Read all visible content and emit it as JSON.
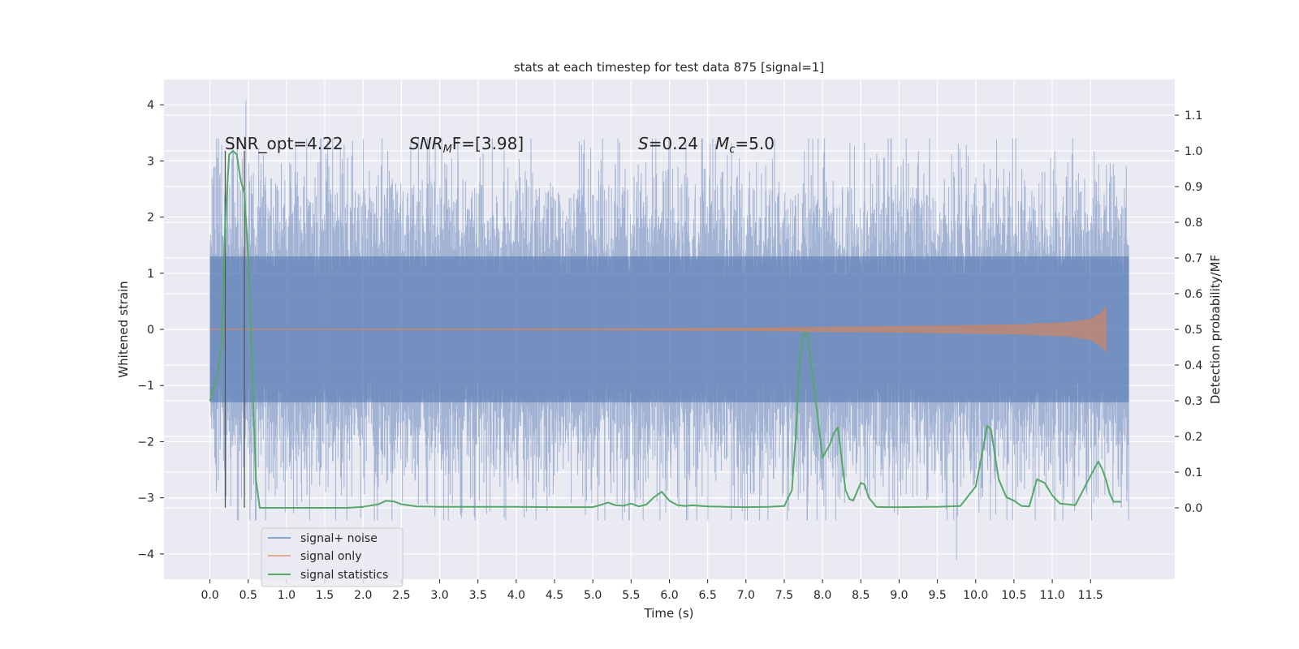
{
  "chart_data": {
    "type": "line",
    "title": "stats at each timestep for test data 875 [signal=1]",
    "xlabel": "Time (s)",
    "ylabel": "Whitened strain",
    "ylabel_right": "Detection probability/MF",
    "xlim": [
      -0.6,
      12.6
    ],
    "ylim": [
      -4.45,
      4.45
    ],
    "ylim_right": [
      -0.2,
      1.2
    ],
    "x_ticks": [
      0.0,
      0.5,
      1.0,
      1.5,
      2.0,
      2.5,
      3.0,
      3.5,
      4.0,
      4.5,
      5.0,
      5.5,
      6.0,
      6.5,
      7.0,
      7.5,
      8.0,
      8.5,
      9.0,
      9.5,
      10.0,
      10.5,
      11.0,
      11.5
    ],
    "x_tick_labels": [
      "0.0",
      "0.5",
      "1.0",
      "1.5",
      "2.0",
      "2.5",
      "3.0",
      "3.5",
      "4.0",
      "4.5",
      "5.0",
      "5.5",
      "6.0",
      "6.5",
      "7.0",
      "7.5",
      "8.0",
      "8.5",
      "9.0",
      "9.5",
      "10.0",
      "10.5",
      "11.0",
      "11.5"
    ],
    "y_ticks": [
      -4,
      -3,
      -2,
      -1,
      0,
      1,
      2,
      3,
      4
    ],
    "y_tick_labels": [
      "−4",
      "−3",
      "−2",
      "−1",
      "0",
      "1",
      "2",
      "3",
      "4"
    ],
    "y_right_ticks": [
      0.0,
      0.1,
      0.2,
      0.3,
      0.4,
      0.5,
      0.6,
      0.7,
      0.8,
      0.9,
      1.0,
      1.1
    ],
    "y_right_tick_labels": [
      "0.0",
      "0.1",
      "0.2",
      "0.3",
      "0.4",
      "0.5",
      "0.6",
      "0.7",
      "0.8",
      "0.9",
      "1.0",
      "1.1"
    ],
    "grid": true,
    "legend_position": "lower-left",
    "annotations": {
      "snr_opt": "SNR_opt=4.22",
      "snr_mf_main": "SNR",
      "snr_mf_sub": "M",
      "snr_mf_rest": "F=[3.98]",
      "s_main": "S",
      "s_rest": "=0.24",
      "mc_main": "M",
      "mc_sub": "c",
      "mc_rest": "=5.0"
    },
    "markers": {
      "x": [
        0.2,
        0.45
      ],
      "y_right_top": 1.0,
      "y_right_bottom": 0.0
    },
    "series": [
      {
        "name": "signal+ noise",
        "color": "#4c72b0",
        "envelope_approx": {
          "x": [
            0.0,
            12.0
          ],
          "dense_band": [
            -1.3,
            1.3
          ],
          "max_peak": 4.08,
          "min_peak": -4.1,
          "max_peak_x": 0.47,
          "min_peak_x": 9.75
        }
      },
      {
        "name": "signal only",
        "color": "#dd8452",
        "envelope_approx": {
          "x": [
            0.0,
            5.0,
            7.0,
            9.0,
            10.5,
            11.2,
            11.5,
            11.65,
            11.7
          ],
          "amplitude": [
            0.003,
            0.008,
            0.02,
            0.05,
            0.08,
            0.12,
            0.18,
            0.3,
            0.4
          ]
        }
      },
      {
        "name": "signal statistics",
        "color": "#55a868",
        "axis": "right",
        "x": [
          0.0,
          0.1,
          0.15,
          0.2,
          0.25,
          0.3,
          0.35,
          0.4,
          0.45,
          0.5,
          0.55,
          0.6,
          0.65,
          0.7,
          1.0,
          1.5,
          1.8,
          2.0,
          2.2,
          2.3,
          2.4,
          2.5,
          2.7,
          3.0,
          3.5,
          4.0,
          4.5,
          5.0,
          5.1,
          5.2,
          5.3,
          5.4,
          5.5,
          5.6,
          5.7,
          5.8,
          5.9,
          6.0,
          6.1,
          6.2,
          6.3,
          6.5,
          6.7,
          7.0,
          7.3,
          7.5,
          7.6,
          7.65,
          7.7,
          7.75,
          7.8,
          7.9,
          8.0,
          8.05,
          8.1,
          8.15,
          8.2,
          8.3,
          8.35,
          8.4,
          8.5,
          8.55,
          8.6,
          8.7,
          8.8,
          9.0,
          9.5,
          9.8,
          10.0,
          10.1,
          10.15,
          10.2,
          10.3,
          10.4,
          10.5,
          10.6,
          10.7,
          10.8,
          10.9,
          11.0,
          11.1,
          11.2,
          11.3,
          11.5,
          11.6,
          11.65,
          11.7,
          11.75,
          11.8,
          11.9
        ],
        "values": [
          0.3,
          0.37,
          0.46,
          0.8,
          0.99,
          1.0,
          0.99,
          0.92,
          0.88,
          0.7,
          0.4,
          0.08,
          0.0,
          0.0,
          0.0,
          0.0,
          0.0,
          0.003,
          0.01,
          0.02,
          0.018,
          0.01,
          0.004,
          0.003,
          0.003,
          0.003,
          0.002,
          0.002,
          0.008,
          0.015,
          0.007,
          0.006,
          0.012,
          0.004,
          0.009,
          0.03,
          0.045,
          0.02,
          0.008,
          0.005,
          0.007,
          0.004,
          0.003,
          0.002,
          0.003,
          0.005,
          0.05,
          0.2,
          0.41,
          0.49,
          0.49,
          0.32,
          0.14,
          0.16,
          0.18,
          0.21,
          0.225,
          0.05,
          0.025,
          0.02,
          0.07,
          0.065,
          0.03,
          0.003,
          0.002,
          0.002,
          0.003,
          0.005,
          0.06,
          0.17,
          0.23,
          0.22,
          0.08,
          0.03,
          0.02,
          0.005,
          0.004,
          0.08,
          0.07,
          0.035,
          0.012,
          0.01,
          0.007,
          0.09,
          0.13,
          0.11,
          0.08,
          0.04,
          0.017,
          0.017
        ]
      }
    ]
  }
}
